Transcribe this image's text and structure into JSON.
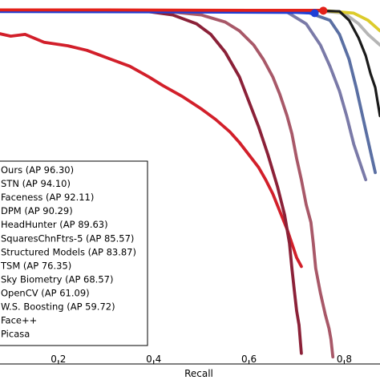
{
  "chart_data": {
    "type": "line",
    "title": "",
    "xlabel": "Recall",
    "ylabel": "",
    "xlim": [
      0.0,
      0.875
    ],
    "ylim": [
      0.0,
      1.0
    ],
    "grid": false,
    "legend_position": "bottom-left",
    "xticks": [
      "0.2",
      "0.4",
      "0.6",
      "0.8"
    ],
    "series": [
      {
        "name": "Ours (AP 96.30)",
        "color": "#e32119",
        "points": [
          [
            0.0,
            0.999
          ],
          [
            0.3,
            0.999
          ],
          [
            0.6,
            0.998
          ],
          [
            0.75,
            0.998
          ],
          [
            0.756,
            0.997
          ]
        ]
      },
      {
        "name": "STN (AP 94.10)",
        "color": "#1f3fd6",
        "points": [
          [
            0.0,
            0.995
          ],
          [
            0.4,
            0.994
          ],
          [
            0.7,
            0.992
          ],
          [
            0.738,
            0.99
          ]
        ]
      },
      {
        "name": "Faceness (AP 92.11)",
        "color": "#1a1a1a",
        "points": [
          [
            0.0,
            0.999
          ],
          [
            0.72,
            0.998
          ],
          [
            0.79,
            0.995
          ],
          [
            0.81,
            0.97
          ],
          [
            0.83,
            0.92
          ],
          [
            0.845,
            0.87
          ],
          [
            0.855,
            0.82
          ],
          [
            0.865,
            0.78
          ],
          [
            0.87,
            0.74
          ],
          [
            0.875,
            0.7
          ]
        ]
      },
      {
        "name": "DPM (AP 90.29)",
        "color": "#dccb2b",
        "points": [
          [
            0.0,
            0.998
          ],
          [
            0.76,
            0.997
          ],
          [
            0.82,
            0.99
          ],
          [
            0.85,
            0.97
          ],
          [
            0.875,
            0.94
          ]
        ]
      },
      {
        "name": "HeadHunter (AP 89.63)",
        "color": "#b5b5b5",
        "points": [
          [
            0.0,
            0.997
          ],
          [
            0.75,
            0.996
          ],
          [
            0.8,
            0.99
          ],
          [
            0.83,
            0.96
          ],
          [
            0.85,
            0.93
          ],
          [
            0.875,
            0.9
          ]
        ]
      },
      {
        "name": "SquaresChnFtrs-5 (AP 85.57)",
        "color": "#5a6fa3",
        "points": [
          [
            0.0,
            0.996
          ],
          [
            0.72,
            0.994
          ],
          [
            0.77,
            0.97
          ],
          [
            0.79,
            0.93
          ],
          [
            0.81,
            0.86
          ],
          [
            0.825,
            0.78
          ],
          [
            0.84,
            0.69
          ],
          [
            0.855,
            0.6
          ],
          [
            0.865,
            0.54
          ]
        ]
      },
      {
        "name": "Structured Models (AP 83.87)",
        "color": "#7a7aa8",
        "points": [
          [
            0.0,
            0.996
          ],
          [
            0.68,
            0.993
          ],
          [
            0.72,
            0.96
          ],
          [
            0.75,
            0.9
          ],
          [
            0.77,
            0.84
          ],
          [
            0.79,
            0.77
          ],
          [
            0.805,
            0.7
          ],
          [
            0.82,
            0.62
          ],
          [
            0.835,
            0.56
          ],
          [
            0.845,
            0.52
          ]
        ]
      },
      {
        "name": "TSM (AP 76.35)",
        "color": "#a85868",
        "points": [
          [
            0.0,
            0.996
          ],
          [
            0.42,
            0.996
          ],
          [
            0.5,
            0.985
          ],
          [
            0.55,
            0.965
          ],
          [
            0.58,
            0.94
          ],
          [
            0.61,
            0.9
          ],
          [
            0.63,
            0.86
          ],
          [
            0.65,
            0.81
          ],
          [
            0.665,
            0.76
          ],
          [
            0.68,
            0.7
          ],
          [
            0.69,
            0.65
          ],
          [
            0.7,
            0.58
          ],
          [
            0.71,
            0.52
          ],
          [
            0.72,
            0.45
          ],
          [
            0.73,
            0.4
          ],
          [
            0.735,
            0.34
          ],
          [
            0.74,
            0.27
          ],
          [
            0.75,
            0.2
          ],
          [
            0.76,
            0.14
          ],
          [
            0.768,
            0.1
          ],
          [
            0.772,
            0.07
          ],
          [
            0.776,
            0.02
          ]
        ]
      },
      {
        "name": "Sky Biometry (AP 68.57)",
        "color": "#8b2138",
        "points": [
          [
            0.0,
            0.996
          ],
          [
            0.38,
            0.996
          ],
          [
            0.44,
            0.985
          ],
          [
            0.49,
            0.96
          ],
          [
            0.52,
            0.93
          ],
          [
            0.55,
            0.88
          ],
          [
            0.58,
            0.81
          ],
          [
            0.6,
            0.74
          ],
          [
            0.62,
            0.67
          ],
          [
            0.64,
            0.59
          ],
          [
            0.66,
            0.5
          ],
          [
            0.675,
            0.42
          ],
          [
            0.685,
            0.34
          ],
          [
            0.69,
            0.27
          ],
          [
            0.695,
            0.21
          ],
          [
            0.7,
            0.15
          ],
          [
            0.705,
            0.11
          ],
          [
            0.708,
            0.06
          ],
          [
            0.71,
            0.03
          ]
        ]
      },
      {
        "name": "OpenCV (AP 61.09)",
        "color": "#d21f2a",
        "points": [
          [
            0.0,
            0.945
          ],
          [
            0.05,
            0.94
          ],
          [
            0.1,
            0.925
          ],
          [
            0.13,
            0.93
          ],
          [
            0.17,
            0.908
          ],
          [
            0.22,
            0.898
          ],
          [
            0.26,
            0.885
          ],
          [
            0.31,
            0.86
          ],
          [
            0.35,
            0.84
          ],
          [
            0.39,
            0.81
          ],
          [
            0.42,
            0.785
          ],
          [
            0.46,
            0.755
          ],
          [
            0.5,
            0.72
          ],
          [
            0.53,
            0.69
          ],
          [
            0.56,
            0.655
          ],
          [
            0.58,
            0.625
          ],
          [
            0.6,
            0.59
          ],
          [
            0.62,
            0.555
          ],
          [
            0.635,
            0.52
          ],
          [
            0.65,
            0.48
          ],
          [
            0.665,
            0.43
          ],
          [
            0.68,
            0.38
          ],
          [
            0.69,
            0.34
          ],
          [
            0.7,
            0.3
          ],
          [
            0.71,
            0.275
          ]
        ]
      },
      {
        "name": "W.S. Boosting (AP 59.72)",
        "color": "#d4c85a",
        "points": []
      },
      {
        "name": "Face++",
        "color": "#4a8ccf",
        "points": []
      },
      {
        "name": "Picasa",
        "color": "#6bbf59",
        "points": []
      }
    ],
    "markers": [
      {
        "series": "Ours (AP 96.30)",
        "x": 0.756,
        "y": 0.997,
        "color": "#e32119"
      },
      {
        "series": "STN (AP 94.10)",
        "x": 0.738,
        "y": 0.99,
        "color": "#1f3fd6"
      }
    ]
  }
}
